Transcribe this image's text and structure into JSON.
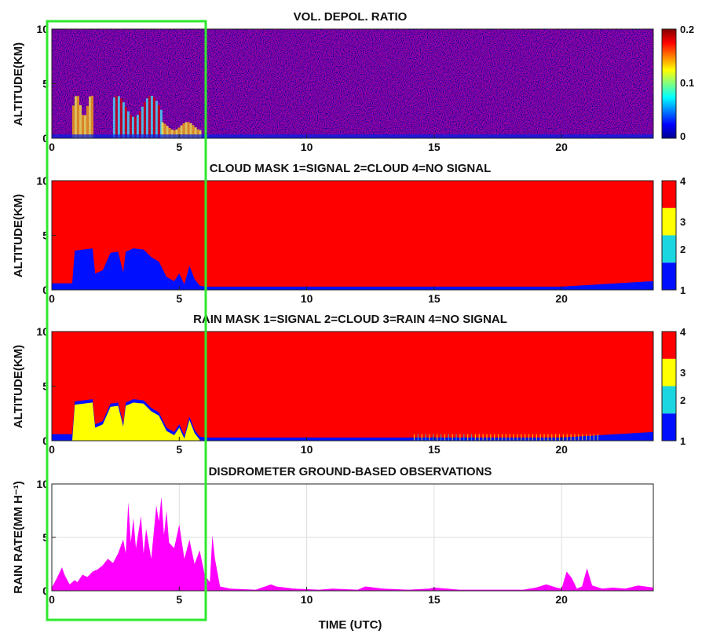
{
  "chart_data": [
    {
      "type": "heatmap",
      "title": "VOL. DEPOL. RATIO",
      "ylabel": "ALTITUDE(KM)",
      "xlabel": "",
      "xlim": [
        0,
        23.6
      ],
      "ylim": [
        0,
        10
      ],
      "xticks": [
        "0",
        "5",
        "10",
        "15",
        "20"
      ],
      "yticks": [
        "0",
        "5",
        "10"
      ],
      "colorbar": {
        "ticks": [
          "0",
          "0.1",
          "0.2"
        ],
        "range": [
          0,
          0.2
        ],
        "colormap": "jet"
      },
      "features": [
        {
          "x_start": 0.8,
          "x_end": 1.6,
          "top": 4.0
        },
        {
          "x_start": 2.4,
          "x_end": 4.3,
          "top": 3.9
        },
        {
          "x_start": 4.3,
          "x_end": 5.8,
          "top": 1.5
        }
      ]
    },
    {
      "type": "heatmap",
      "title": "CLOUD MASK 1=SIGNAL 2=CLOUD 4=NO SIGNAL",
      "ylabel": "ALTITUDE(KM)",
      "xlabel": "",
      "xlim": [
        0,
        23.6
      ],
      "ylim": [
        0,
        10
      ],
      "xticks": [
        "0",
        "5",
        "10",
        "15",
        "20"
      ],
      "yticks": [
        "0",
        "5",
        "10"
      ],
      "colorbar": {
        "ticks": [
          "1",
          "2",
          "3",
          "4"
        ],
        "colors": [
          "#0010ff",
          "#1ad6e0",
          "#ffff00",
          "#ff0000"
        ]
      },
      "signal_top_profile": [
        [
          0,
          0.6
        ],
        [
          0.8,
          0.6
        ],
        [
          0.9,
          3.6
        ],
        [
          1.6,
          3.8
        ],
        [
          1.7,
          1.5
        ],
        [
          2.0,
          1.8
        ],
        [
          2.3,
          3.4
        ],
        [
          2.6,
          3.5
        ],
        [
          2.8,
          1.6
        ],
        [
          2.9,
          3.5
        ],
        [
          3.2,
          3.8
        ],
        [
          3.6,
          3.7
        ],
        [
          3.9,
          3.0
        ],
        [
          4.2,
          2.6
        ],
        [
          4.5,
          1.2
        ],
        [
          4.8,
          0.8
        ],
        [
          5.0,
          1.5
        ],
        [
          5.2,
          0.5
        ],
        [
          5.4,
          2.2
        ],
        [
          5.6,
          1.0
        ],
        [
          5.8,
          0.4
        ],
        [
          6.0,
          0.3
        ],
        [
          20.0,
          0.3
        ],
        [
          23.6,
          0.8
        ]
      ]
    },
    {
      "type": "heatmap",
      "title": "RAIN MASK 1=SIGNAL 2=CLOUD 3=RAIN 4=NO SIGNAL",
      "ylabel": "ALTITUDE(KM)",
      "xlabel": "",
      "xlim": [
        0,
        23.6
      ],
      "ylim": [
        0,
        10
      ],
      "xticks": [
        "0",
        "5",
        "10",
        "15",
        "20"
      ],
      "yticks": [
        "0",
        "5",
        "10"
      ],
      "colorbar": {
        "ticks": [
          "1",
          "2",
          "3",
          "4"
        ],
        "colors": [
          "#0010ff",
          "#1ad6e0",
          "#ffff00",
          "#ff0000"
        ]
      },
      "rain_top_profile": [
        [
          0.8,
          0.3
        ],
        [
          0.9,
          3.6
        ],
        [
          1.6,
          3.8
        ],
        [
          1.7,
          1.5
        ],
        [
          2.0,
          1.8
        ],
        [
          2.3,
          3.4
        ],
        [
          2.6,
          3.5
        ],
        [
          2.8,
          1.6
        ],
        [
          2.9,
          3.5
        ],
        [
          3.2,
          3.8
        ],
        [
          3.6,
          3.7
        ],
        [
          3.9,
          3.0
        ],
        [
          4.2,
          2.6
        ],
        [
          4.5,
          1.2
        ],
        [
          4.8,
          0.8
        ],
        [
          5.0,
          1.5
        ],
        [
          5.2,
          0.5
        ],
        [
          5.4,
          2.2
        ],
        [
          5.6,
          1.0
        ],
        [
          5.8,
          0.4
        ]
      ]
    },
    {
      "type": "area",
      "title": "DISDROMETER GROUND-BASED OBSERVATIONS",
      "ylabel": "RAIN RATE(MM H⁻¹)",
      "xlabel": "TIME (UTC)",
      "xlim": [
        0,
        23.6
      ],
      "ylim": [
        0,
        10
      ],
      "xticks": [
        "0",
        "5",
        "10",
        "15",
        "20"
      ],
      "yticks": [
        "0",
        "5",
        "10"
      ],
      "grid": true,
      "color": "#ff00ff",
      "x": [
        0,
        0.2,
        0.4,
        0.5,
        0.7,
        0.9,
        1.0,
        1.2,
        1.4,
        1.6,
        1.8,
        2.0,
        2.2,
        2.4,
        2.6,
        2.8,
        2.9,
        3.0,
        3.1,
        3.2,
        3.3,
        3.5,
        3.6,
        3.7,
        3.9,
        4.0,
        4.1,
        4.2,
        4.3,
        4.4,
        4.5,
        4.6,
        4.8,
        5.0,
        5.2,
        5.4,
        5.6,
        5.8,
        6.0,
        6.2,
        6.3,
        6.4,
        6.6,
        7.0,
        8.0,
        8.6,
        8.8,
        9.5,
        10.5,
        11.0,
        12.0,
        12.3,
        13.0,
        14.0,
        14.8,
        15.0,
        16.0,
        17.5,
        18.5,
        19.0,
        19.4,
        19.8,
        20.0,
        20.2,
        20.4,
        20.6,
        20.8,
        21.0,
        21.2,
        21.6,
        22.0,
        22.5,
        23.0,
        23.6
      ],
      "values": [
        0.3,
        1.2,
        2.2,
        1.5,
        0.6,
        1.0,
        0.8,
        1.5,
        1.3,
        1.8,
        2.0,
        2.4,
        3.0,
        2.6,
        3.5,
        4.8,
        3.5,
        8.3,
        4.5,
        6.8,
        4.0,
        7.0,
        3.5,
        5.8,
        3.0,
        5.5,
        8.0,
        6.5,
        8.8,
        5.2,
        7.5,
        4.5,
        4.0,
        6.2,
        3.0,
        4.8,
        2.5,
        3.8,
        1.5,
        0.8,
        5.2,
        3.0,
        0.4,
        0.2,
        0.1,
        0.6,
        0.4,
        0.2,
        0.1,
        0.2,
        0.1,
        0.4,
        0.2,
        0.1,
        0.2,
        0.3,
        0.1,
        0.1,
        0.1,
        0.3,
        0.6,
        0.3,
        0.2,
        1.8,
        1.2,
        0.2,
        0.4,
        2.1,
        0.5,
        0.2,
        0.3,
        0.2,
        0.5,
        0.3
      ]
    }
  ]
}
